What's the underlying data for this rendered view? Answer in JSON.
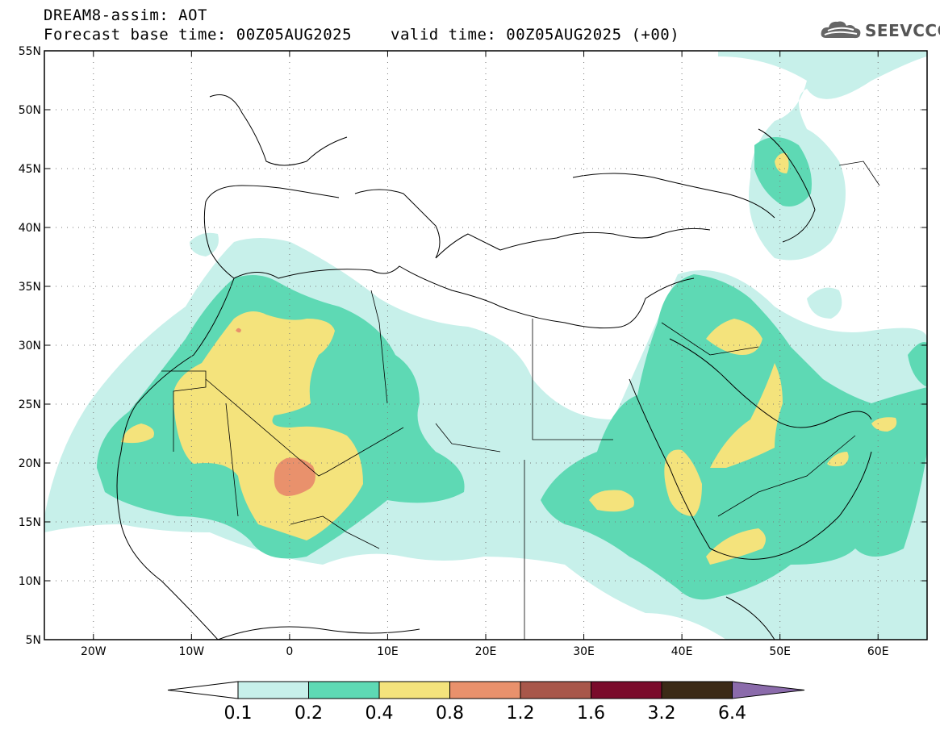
{
  "header": {
    "line1": "DREAM8-assim: AOT",
    "line2": "Forecast base time: 00Z05AUG2025",
    "line2b": "valid time: 00Z05AUG2025 (+00)",
    "logo_text": "SEEVCCC"
  },
  "map": {
    "lon_range": [
      -25,
      65
    ],
    "lat_range": [
      5,
      55
    ],
    "lat_ticks": [
      "55N",
      "50N",
      "45N",
      "40N",
      "35N",
      "30N",
      "25N",
      "20N",
      "15N",
      "10N",
      "5N"
    ],
    "lon_ticks": [
      "20W",
      "10W",
      "0",
      "10E",
      "20E",
      "30E",
      "40E",
      "50E",
      "60E"
    ],
    "lat_values": [
      55,
      50,
      45,
      40,
      35,
      30,
      25,
      20,
      15,
      10,
      5
    ],
    "lon_values": [
      -20,
      -10,
      0,
      10,
      20,
      30,
      40,
      50,
      60
    ]
  },
  "colorbar": {
    "levels": [
      "0.1",
      "0.2",
      "0.4",
      "0.8",
      "1.2",
      "1.6",
      "3.2",
      "6.4"
    ],
    "colors": [
      "#ffffff",
      "#c7f0ea",
      "#5ed9b4",
      "#f4e37c",
      "#e9916c",
      "#a8574a",
      "#7a0b2b",
      "#3b2a16",
      "#8b6bab"
    ]
  },
  "colors": {
    "aot_0_1": "#c7f0ea",
    "aot_0_2": "#5ed9b4",
    "aot_0_4": "#f4e37c",
    "aot_0_8": "#e9916c"
  }
}
